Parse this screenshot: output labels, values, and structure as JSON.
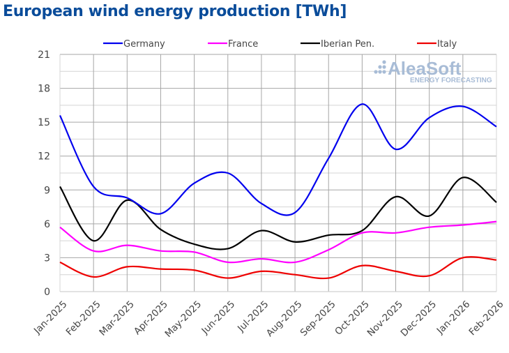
{
  "chart_data": {
    "type": "line",
    "title": "European wind energy production [TWh]",
    "xlabel": "",
    "ylabel": "",
    "ylim": [
      0,
      21
    ],
    "yticks": [
      0,
      3,
      6,
      9,
      12,
      15,
      18,
      21
    ],
    "grid": true,
    "legend": "top",
    "categories": [
      "Jan-2025",
      "Feb-2025",
      "Mar-2025",
      "Apr-2025",
      "May-2025",
      "Jun-2025",
      "Jul-2025",
      "Aug-2025",
      "Sep-2025",
      "Oct-2025",
      "Nov-2025",
      "Dec-2025",
      "Jan-2026",
      "Feb-2026"
    ],
    "series": [
      {
        "name": "Germany",
        "color": "#0000ee",
        "values": [
          15.6,
          9.3,
          8.3,
          6.9,
          9.6,
          10.5,
          7.8,
          7.0,
          11.8,
          16.6,
          12.6,
          15.4,
          16.4,
          14.6
        ]
      },
      {
        "name": "France",
        "color": "#ff00ff",
        "values": [
          5.7,
          3.6,
          4.1,
          3.6,
          3.5,
          2.6,
          2.9,
          2.6,
          3.7,
          5.2,
          5.2,
          5.7,
          5.9,
          6.2
        ]
      },
      {
        "name": "Iberian Pen.",
        "color": "#000000",
        "values": [
          9.3,
          4.5,
          8.1,
          5.5,
          4.2,
          3.8,
          5.4,
          4.4,
          5.0,
          5.4,
          8.4,
          6.7,
          10.1,
          7.9
        ]
      },
      {
        "name": "Italy",
        "color": "#ee0000",
        "values": [
          2.6,
          1.3,
          2.2,
          2.0,
          1.9,
          1.2,
          1.8,
          1.5,
          1.2,
          2.3,
          1.8,
          1.4,
          3.0,
          2.8
        ]
      }
    ]
  },
  "watermark": {
    "brand": "AleaSoft",
    "tagline": "ENERGY FORECASTING"
  }
}
